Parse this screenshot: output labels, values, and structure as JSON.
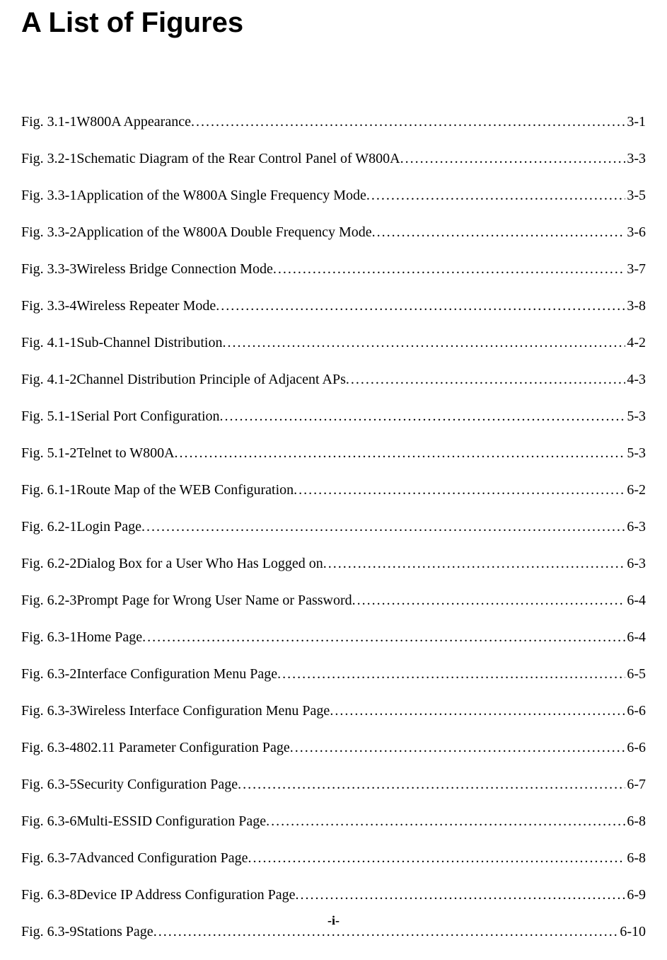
{
  "title": "A List of Figures",
  "footer": "-i-",
  "entries": [
    {
      "label": "Fig. 3.1-1",
      "desc": "  W800A Appearance",
      "page": "3-1"
    },
    {
      "label": "Fig. 3.2-1",
      "desc": " Schematic Diagram of the Rear Control Panel of W800A",
      "page": "3-3"
    },
    {
      "label": "Fig. 3.3-1",
      "desc": " Application of the W800A Single Frequency Mode ",
      "page": "3-5"
    },
    {
      "label": "Fig. 3.3-2",
      "desc": " Application of the W800A Double Frequency Mode",
      "page": "3-6"
    },
    {
      "label": "Fig. 3.3-3",
      "desc": "  Wireless Bridge Connection Mode ",
      "page": "3-7"
    },
    {
      "label": "Fig. 3.3-4",
      "desc": "  Wireless Repeater Mode",
      "page": "3-8"
    },
    {
      "label": "Fig. 4.1-1",
      "desc": "   Sub-Channel Distribution",
      "page": "4-2"
    },
    {
      "label": "Fig. 4.1-2",
      "desc": " Channel Distribution Principle of Adjacent APs ",
      "page": "4-3"
    },
    {
      "label": "Fig. 5.1-1",
      "desc": "  Serial Port Configuration",
      "page": "5-3"
    },
    {
      "label": "Fig. 5.1-2",
      "desc": "  Telnet to W800A",
      "page": "5-3"
    },
    {
      "label": "Fig. 6.1-1",
      "desc": " Route Map of the WEB Configuration ",
      "page": "6-2"
    },
    {
      "label": "Fig. 6.2-1",
      "desc": "  Login Page",
      "page": "6-3"
    },
    {
      "label": "Fig. 6.2-2",
      "desc": " Dialog Box for a User Who Has Logged on",
      "page": "6-3"
    },
    {
      "label": "Fig. 6.2-3",
      "desc": " Prompt Page for Wrong User Name or Password",
      "page": "6-4"
    },
    {
      "label": "Fig. 6.3-1",
      "desc": "  Home Page",
      "page": "6-4"
    },
    {
      "label": "Fig. 6.3-2",
      "desc": "  Interface Configuration Menu Page ",
      "page": "6-5"
    },
    {
      "label": "Fig. 6.3-3",
      "desc": "  Wireless Interface Configuration Menu Page ",
      "page": "6-6"
    },
    {
      "label": "Fig. 6.3-4",
      "desc": "  802.11 Parameter Configuration Page ",
      "page": "6-6"
    },
    {
      "label": "Fig. 6.3-5",
      "desc": "  Security Configuration Page ",
      "page": "6-7"
    },
    {
      "label": "Fig. 6.3-6",
      "desc": "   Multi-ESSID Configuration Page ",
      "page": "6-8"
    },
    {
      "label": "Fig. 6.3-7",
      "desc": "  Advanced Configuration Page",
      "page": "6-8"
    },
    {
      "label": "Fig. 6.3-8",
      "desc": "   Device IP Address Configuration Page",
      "page": "6-9"
    },
    {
      "label": "Fig. 6.3-9",
      "desc": "  Stations Page",
      "page": "6-10"
    }
  ],
  "style": {
    "title_fontsize": 40,
    "entry_fontsize": 20,
    "footer_fontsize": 18,
    "background_color": "#ffffff",
    "text_color": "#000000"
  }
}
